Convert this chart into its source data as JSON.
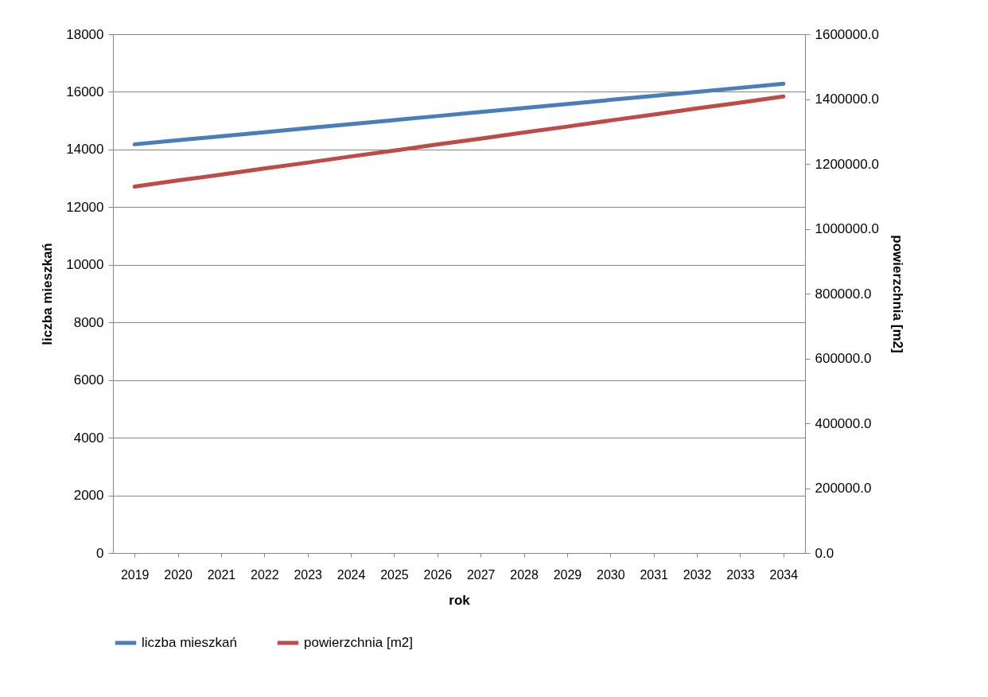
{
  "chart_data": {
    "type": "line",
    "xlabel": "rok",
    "ylabel": "liczba mieszkań",
    "y2label": "powierzchnia [m2]",
    "categories": [
      "2019",
      "2020",
      "2021",
      "2022",
      "2023",
      "2024",
      "2025",
      "2026",
      "2027",
      "2028",
      "2029",
      "2030",
      "2031",
      "2032",
      "2033",
      "2034"
    ],
    "series": [
      {
        "name": "liczba mieszkań",
        "color": "#4a7ebb",
        "values": [
          14180,
          14320,
          14460,
          14600,
          14740,
          14880,
          15020,
          15160,
          15300,
          15440,
          15580,
          15720,
          15860,
          16000,
          16140,
          16280
        ]
      },
      {
        "name": "powierzchnia [m2]",
        "color": "#be4b48",
        "axis": "y2",
        "values": [
          1130000,
          1149000,
          1167000,
          1186000,
          1204000,
          1223000,
          1241000,
          1260000,
          1278000,
          1297000,
          1315000,
          1334000,
          1352000,
          1371000,
          1389000,
          1408000
        ]
      }
    ],
    "ylim": [
      0,
      18000
    ],
    "yticks": [
      0,
      2000,
      4000,
      6000,
      8000,
      10000,
      12000,
      14000,
      16000,
      18000
    ],
    "y2lim": [
      0,
      1600000
    ],
    "y2ticks": [
      {
        "value": 0,
        "label": "0.0"
      },
      {
        "value": 200000,
        "label": "200000.0"
      },
      {
        "value": 400000,
        "label": "400000.0"
      },
      {
        "value": 600000,
        "label": "600000.0"
      },
      {
        "value": 800000,
        "label": "800000.0"
      },
      {
        "value": 1000000,
        "label": "1000000.0"
      },
      {
        "value": 1200000,
        "label": "1200000.0"
      },
      {
        "value": 1400000,
        "label": "1400000.0"
      },
      {
        "value": 1600000,
        "label": "1600000.0"
      }
    ],
    "grid": "y",
    "legend": "bottom"
  }
}
